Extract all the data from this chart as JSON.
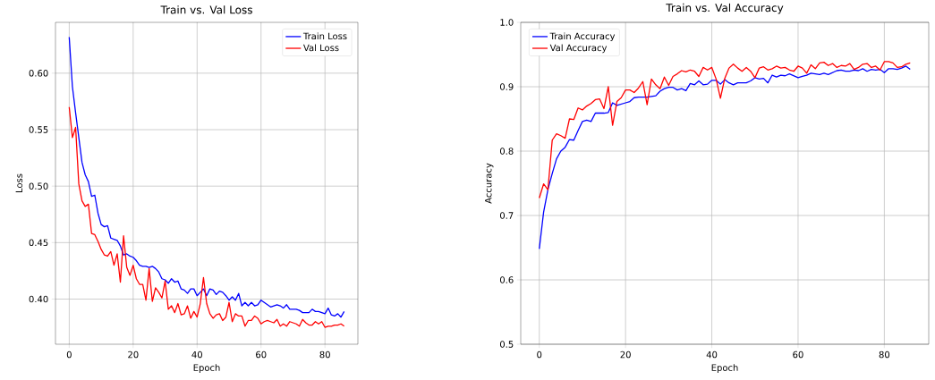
{
  "chart_data": [
    {
      "type": "line",
      "title": "Train vs. Val Loss",
      "xlabel": "Epoch",
      "ylabel": "Loss",
      "xlim": [
        -4.3,
        90.3
      ],
      "ylim": [
        0.36,
        0.645
      ],
      "xticks": [
        0,
        20,
        40,
        60,
        80
      ],
      "yticks": [
        {
          "value": 0.4,
          "label": "0.40"
        },
        {
          "value": 0.45,
          "label": "0.45"
        },
        {
          "value": 0.5,
          "label": "0.50"
        },
        {
          "value": 0.55,
          "label": "0.55"
        },
        {
          "value": 0.6,
          "label": "0.60"
        }
      ],
      "grid": true,
      "legend": "top right",
      "x": [
        0,
        1,
        2,
        3,
        4,
        5,
        6,
        7,
        8,
        9,
        10,
        11,
        12,
        13,
        14,
        15,
        16,
        17,
        18,
        19,
        20,
        21,
        22,
        23,
        24,
        25,
        26,
        27,
        28,
        29,
        30,
        31,
        32,
        33,
        34,
        35,
        36,
        37,
        38,
        39,
        40,
        41,
        42,
        43,
        44,
        45,
        46,
        47,
        48,
        49,
        50,
        51,
        52,
        53,
        54,
        55,
        56,
        57,
        58,
        59,
        60,
        61,
        62,
        63,
        64,
        65,
        66,
        67,
        68,
        69,
        70,
        71,
        72,
        73,
        74,
        75,
        76,
        77,
        78,
        79,
        80,
        81,
        82,
        83,
        84,
        85,
        86
      ],
      "series": [
        {
          "name": "Train Loss",
          "color": "#0000ff",
          "values": [
            0.632,
            0.588,
            0.565,
            0.543,
            0.521,
            0.51,
            0.504,
            0.491,
            0.492,
            0.476,
            0.466,
            0.464,
            0.465,
            0.454,
            0.453,
            0.452,
            0.447,
            0.439,
            0.44,
            0.438,
            0.437,
            0.434,
            0.43,
            0.429,
            0.429,
            0.428,
            0.429,
            0.427,
            0.424,
            0.418,
            0.417,
            0.414,
            0.418,
            0.415,
            0.416,
            0.409,
            0.408,
            0.405,
            0.409,
            0.409,
            0.403,
            0.406,
            0.409,
            0.403,
            0.409,
            0.408,
            0.404,
            0.407,
            0.406,
            0.403,
            0.399,
            0.402,
            0.399,
            0.405,
            0.394,
            0.397,
            0.394,
            0.397,
            0.394,
            0.395,
            0.399,
            0.397,
            0.395,
            0.393,
            0.394,
            0.395,
            0.394,
            0.392,
            0.395,
            0.391,
            0.391,
            0.391,
            0.39,
            0.388,
            0.388,
            0.388,
            0.391,
            0.389,
            0.389,
            0.388,
            0.387,
            0.392,
            0.386,
            0.385,
            0.387,
            0.384,
            0.389
          ]
        },
        {
          "name": "Val Loss",
          "color": "#ff0000",
          "values": [
            0.57,
            0.543,
            0.552,
            0.502,
            0.487,
            0.482,
            0.484,
            0.458,
            0.457,
            0.451,
            0.444,
            0.439,
            0.438,
            0.442,
            0.43,
            0.44,
            0.415,
            0.456,
            0.428,
            0.421,
            0.43,
            0.418,
            0.413,
            0.413,
            0.399,
            0.427,
            0.398,
            0.41,
            0.406,
            0.401,
            0.416,
            0.391,
            0.394,
            0.388,
            0.396,
            0.386,
            0.387,
            0.394,
            0.383,
            0.389,
            0.384,
            0.396,
            0.419,
            0.396,
            0.387,
            0.383,
            0.386,
            0.387,
            0.381,
            0.384,
            0.397,
            0.38,
            0.387,
            0.385,
            0.385,
            0.376,
            0.381,
            0.381,
            0.385,
            0.383,
            0.378,
            0.38,
            0.381,
            0.38,
            0.379,
            0.382,
            0.376,
            0.378,
            0.376,
            0.38,
            0.379,
            0.378,
            0.376,
            0.382,
            0.379,
            0.377,
            0.377,
            0.38,
            0.378,
            0.38,
            0.375,
            0.376,
            0.376,
            0.377,
            0.377,
            0.378,
            0.376
          ]
        }
      ]
    },
    {
      "type": "line",
      "title": "Train vs. Val Accuracy",
      "xlabel": "Epoch",
      "ylabel": "Accuracy",
      "xlim": [
        -4.3,
        90.3
      ],
      "ylim": [
        0.5,
        1.0
      ],
      "xticks": [
        0,
        20,
        40,
        60,
        80
      ],
      "yticks": [
        0.5,
        0.6,
        0.7,
        0.8,
        0.9,
        {
          "value": 1.0,
          "label": "1.0"
        }
      ],
      "grid": true,
      "legend": "top left",
      "x": [
        0,
        1,
        2,
        3,
        4,
        5,
        6,
        7,
        8,
        9,
        10,
        11,
        12,
        13,
        14,
        15,
        16,
        17,
        18,
        19,
        20,
        21,
        22,
        23,
        24,
        25,
        26,
        27,
        28,
        29,
        30,
        31,
        32,
        33,
        34,
        35,
        36,
        37,
        38,
        39,
        40,
        41,
        42,
        43,
        44,
        45,
        46,
        47,
        48,
        49,
        50,
        51,
        52,
        53,
        54,
        55,
        56,
        57,
        58,
        59,
        60,
        61,
        62,
        63,
        64,
        65,
        66,
        67,
        68,
        69,
        70,
        71,
        72,
        73,
        74,
        75,
        76,
        77,
        78,
        79,
        80,
        81,
        82,
        83,
        84,
        85,
        86
      ],
      "series": [
        {
          "name": "Train Accuracy",
          "color": "#0000ff",
          "values": [
            0.648,
            0.705,
            0.74,
            0.765,
            0.788,
            0.8,
            0.806,
            0.818,
            0.817,
            0.832,
            0.846,
            0.848,
            0.846,
            0.859,
            0.859,
            0.859,
            0.86,
            0.875,
            0.871,
            0.873,
            0.875,
            0.877,
            0.883,
            0.884,
            0.884,
            0.884,
            0.885,
            0.886,
            0.893,
            0.897,
            0.899,
            0.899,
            0.895,
            0.897,
            0.894,
            0.905,
            0.903,
            0.909,
            0.903,
            0.904,
            0.91,
            0.91,
            0.904,
            0.911,
            0.906,
            0.903,
            0.906,
            0.906,
            0.906,
            0.909,
            0.914,
            0.912,
            0.913,
            0.906,
            0.918,
            0.915,
            0.918,
            0.917,
            0.92,
            0.917,
            0.914,
            0.916,
            0.918,
            0.921,
            0.92,
            0.919,
            0.921,
            0.919,
            0.922,
            0.925,
            0.926,
            0.924,
            0.924,
            0.926,
            0.925,
            0.928,
            0.924,
            0.927,
            0.926,
            0.927,
            0.922,
            0.928,
            0.928,
            0.927,
            0.929,
            0.932,
            0.927
          ]
        },
        {
          "name": "Val Accuracy",
          "color": "#ff0000",
          "values": [
            0.727,
            0.749,
            0.74,
            0.817,
            0.827,
            0.824,
            0.82,
            0.85,
            0.849,
            0.867,
            0.864,
            0.87,
            0.874,
            0.88,
            0.881,
            0.866,
            0.9,
            0.84,
            0.877,
            0.883,
            0.895,
            0.895,
            0.891,
            0.898,
            0.908,
            0.872,
            0.912,
            0.903,
            0.897,
            0.915,
            0.902,
            0.916,
            0.92,
            0.925,
            0.923,
            0.926,
            0.924,
            0.916,
            0.93,
            0.926,
            0.93,
            0.912,
            0.882,
            0.913,
            0.929,
            0.935,
            0.929,
            0.924,
            0.93,
            0.924,
            0.914,
            0.929,
            0.931,
            0.926,
            0.928,
            0.932,
            0.929,
            0.93,
            0.926,
            0.924,
            0.932,
            0.929,
            0.921,
            0.934,
            0.928,
            0.937,
            0.938,
            0.933,
            0.936,
            0.93,
            0.933,
            0.932,
            0.936,
            0.927,
            0.93,
            0.935,
            0.936,
            0.93,
            0.932,
            0.926,
            0.939,
            0.939,
            0.937,
            0.93,
            0.931,
            0.935,
            0.937
          ]
        }
      ]
    }
  ]
}
